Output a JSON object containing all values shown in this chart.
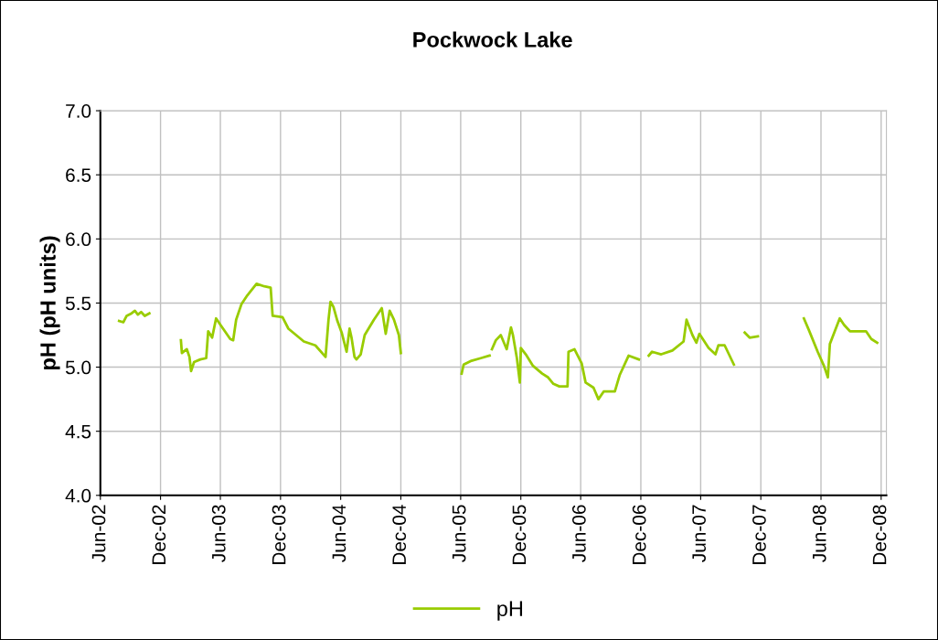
{
  "chart_data": {
    "type": "line",
    "title": "Pockwock Lake",
    "ylabel": "pH (pH units)",
    "x": [
      "2002-07-28",
      "2002-08-10",
      "2002-08-20",
      "2002-09-04",
      "2002-09-14",
      "2002-09-23",
      "2002-10-03",
      "2002-10-14",
      "2002-10-28",
      "2002-12-01",
      "2003-02-01",
      "2003-02-04",
      "2003-02-19",
      "2003-02-27",
      "2003-03-04",
      "2003-03-13",
      "2003-04-01",
      "2003-04-19",
      "2003-04-25",
      "2003-05-07",
      "2003-05-19",
      "2003-06-04",
      "2003-07-01",
      "2003-07-10",
      "2003-07-19",
      "2003-08-04",
      "2003-08-22",
      "2003-09-19",
      "2003-10-13",
      "2003-11-01",
      "2003-11-07",
      "2003-12-07",
      "2003-12-25",
      "2004-02-10",
      "2004-03-16",
      "2004-04-16",
      "2004-04-25",
      "2004-05-01",
      "2004-05-10",
      "2004-05-22",
      "2004-06-04",
      "2004-06-19",
      "2004-06-28",
      "2004-07-04",
      "2004-07-13",
      "2004-07-19",
      "2004-08-01",
      "2004-08-13",
      "2004-09-10",
      "2004-10-04",
      "2004-10-16",
      "2004-10-28",
      "2004-11-10",
      "2004-11-25",
      "2004-12-01",
      "2005-03-01",
      "2005-06-04",
      "2005-06-10",
      "2005-07-04",
      "2005-08-01",
      "2005-08-28",
      "2005-09-02",
      "2005-09-04",
      "2005-09-16",
      "2005-10-01",
      "2005-10-19",
      "2005-11-01",
      "2005-11-07",
      "2005-11-19",
      "2005-11-28",
      "2005-12-01",
      "2005-12-16",
      "2006-01-07",
      "2006-02-04",
      "2006-02-22",
      "2006-03-10",
      "2006-03-28",
      "2006-04-22",
      "2006-04-25",
      "2006-05-13",
      "2006-06-04",
      "2006-06-16",
      "2006-07-10",
      "2006-07-25",
      "2006-08-10",
      "2006-09-13",
      "2006-09-28",
      "2006-10-25",
      "2006-11-25",
      "2006-12-10",
      "2006-12-25",
      "2007-01-04",
      "2007-02-01",
      "2007-03-07",
      "2007-04-10",
      "2007-04-19",
      "2007-05-07",
      "2007-05-19",
      "2007-05-28",
      "2007-06-25",
      "2007-07-16",
      "2007-07-25",
      "2007-08-13",
      "2007-09-10",
      "2007-09-25",
      "2007-10-13",
      "2007-10-28",
      "2007-11-22",
      "2008-01-01",
      "2008-04-10",
      "2008-04-25",
      "2008-05-22",
      "2008-06-10",
      "2008-06-22",
      "2008-06-28",
      "2008-07-13",
      "2008-07-28",
      "2008-08-10",
      "2008-08-28",
      "2008-10-16",
      "2008-11-01",
      "2008-11-19"
    ],
    "series": [
      {
        "name": "pH",
        "color": "#99cc00",
        "values": [
          5.36,
          5.35,
          5.4,
          5.42,
          5.44,
          5.41,
          5.43,
          5.4,
          5.42,
          null,
          5.21,
          5.11,
          5.14,
          5.08,
          4.97,
          5.04,
          5.06,
          5.07,
          5.28,
          5.23,
          5.38,
          5.32,
          5.22,
          5.21,
          5.37,
          5.49,
          5.56,
          5.65,
          5.63,
          5.62,
          5.4,
          5.39,
          5.3,
          5.2,
          5.17,
          5.08,
          5.37,
          5.51,
          5.47,
          5.36,
          5.27,
          5.12,
          5.3,
          5.23,
          5.08,
          5.06,
          5.1,
          5.25,
          5.37,
          5.46,
          5.26,
          5.44,
          5.37,
          5.25,
          5.11,
          null,
          4.95,
          5.02,
          5.05,
          5.07,
          5.09,
          null,
          5.14,
          5.21,
          5.25,
          5.14,
          5.31,
          5.25,
          5.07,
          4.88,
          5.15,
          5.1,
          5.01,
          4.95,
          4.92,
          4.87,
          4.85,
          4.85,
          5.12,
          5.14,
          5.03,
          4.88,
          4.84,
          4.75,
          4.81,
          4.81,
          4.94,
          5.09,
          5.06,
          null,
          5.09,
          5.12,
          5.1,
          5.13,
          5.2,
          5.37,
          5.25,
          5.19,
          5.26,
          5.15,
          5.1,
          5.17,
          5.17,
          5.02,
          null,
          5.27,
          5.23,
          5.24,
          null,
          5.38,
          5.29,
          5.12,
          5.01,
          4.92,
          5.18,
          5.28,
          5.38,
          5.33,
          5.28,
          5.28,
          5.22,
          5.19
        ]
      }
    ],
    "xlim": [
      "2002-06-01",
      "2008-12-17"
    ],
    "xticks": [
      {
        "value": "2002-06-01",
        "label": "Jun-02"
      },
      {
        "value": "2002-12-01",
        "label": "Dec-02"
      },
      {
        "value": "2003-06-01",
        "label": "Jun-03"
      },
      {
        "value": "2003-12-01",
        "label": "Dec-03"
      },
      {
        "value": "2004-06-01",
        "label": "Jun-04"
      },
      {
        "value": "2004-12-01",
        "label": "Dec-04"
      },
      {
        "value": "2005-06-01",
        "label": "Jun-05"
      },
      {
        "value": "2005-12-01",
        "label": "Dec-05"
      },
      {
        "value": "2006-06-01",
        "label": "Jun-06"
      },
      {
        "value": "2006-12-01",
        "label": "Dec-06"
      },
      {
        "value": "2007-06-01",
        "label": "Jun-07"
      },
      {
        "value": "2007-12-01",
        "label": "Dec-07"
      },
      {
        "value": "2008-06-01",
        "label": "Jun-08"
      },
      {
        "value": "2008-12-01",
        "label": "Dec-08"
      }
    ],
    "ylim": [
      4.0,
      7.0
    ],
    "yticks": [
      {
        "value": 4.0,
        "label": "4.0"
      },
      {
        "value": 4.5,
        "label": "4.5"
      },
      {
        "value": 5.0,
        "label": "5.0"
      },
      {
        "value": 5.5,
        "label": "5.5"
      },
      {
        "value": 6.0,
        "label": "6.0"
      },
      {
        "value": 6.5,
        "label": "6.5"
      },
      {
        "value": 7.0,
        "label": "7.0"
      }
    ],
    "grid": true,
    "legend": "bottom",
    "marker": "none",
    "line_style": "solid"
  }
}
